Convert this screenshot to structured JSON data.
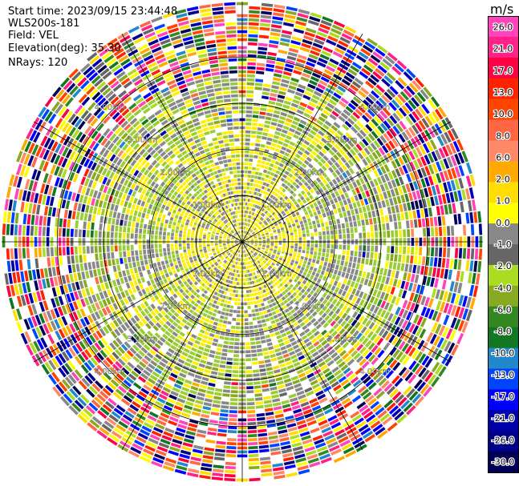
{
  "info": {
    "start_time": "Start time: 2023/09/15 23:44:48",
    "instrument": "WLS200s-181",
    "field": "Field: VEL",
    "elevation": "Elevation(deg): 35.30",
    "nrays": "NRays: 120"
  },
  "chart_data": {
    "type": "heatmap",
    "projection": "polar-ppi",
    "field": "VEL",
    "unit": "m/s",
    "nrays": 120,
    "elevation_deg": 35.3,
    "range_rings_km": [
      1.0,
      2.0,
      3.0,
      4.0
    ],
    "ring_labels": [
      "1.00km",
      "2.00km",
      "3.00km",
      "4.00km"
    ],
    "azimuth_spokes_deg": [
      0,
      30,
      60,
      90,
      120,
      150,
      180,
      210,
      240,
      270,
      300,
      330
    ],
    "max_range_km": 5.2,
    "colorbar": {
      "label": "m/s",
      "ticks": [
        "26.0",
        "21.0",
        "17.0",
        "13.0",
        "10.0",
        "8.0",
        "6.0",
        "2.0",
        "1.0",
        "0.0",
        "-1.0",
        "-2.0",
        "-4.0",
        "-6.0",
        "-8.0",
        "-10.0",
        "-13.0",
        "-17.0",
        "-21.0",
        "-26.0",
        "-30.0"
      ],
      "colors": [
        "#ff44bb",
        "#ff2288",
        "#ff0044",
        "#ff2200",
        "#ff4400",
        "#ff6644",
        "#ff8866",
        "#ffaa00",
        "#ffdd00",
        "#ffff00",
        "#888888",
        "#666666",
        "#aadd22",
        "#88aa22",
        "#338822",
        "#117722",
        "#2288cc",
        "#0044ff",
        "#0000ff",
        "#0000aa",
        "#000088",
        "#000055"
      ]
    },
    "pattern": {
      "near_slow_yellow_km": 1.35,
      "near_gray_green_km": 2.6,
      "noise_start_km": 3.6
    }
  }
}
